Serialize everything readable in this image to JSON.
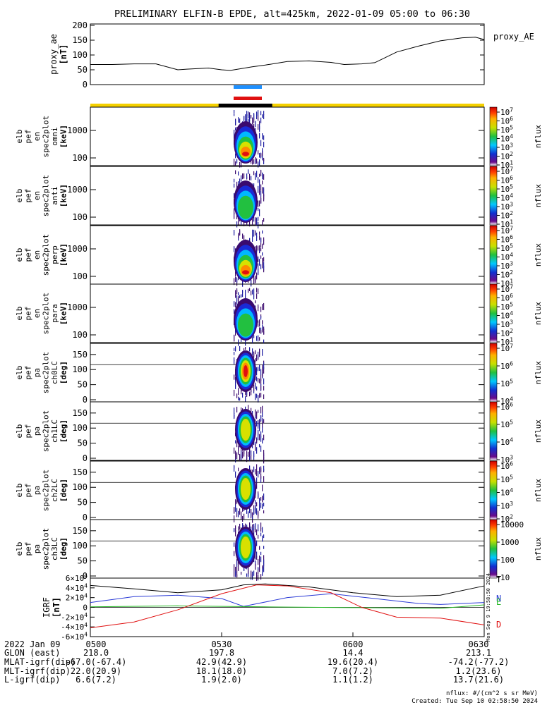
{
  "title": "PRELIMINARY ELFIN-B EPDE, alt=425km, 2022-01-09 05:00 to 06:30",
  "ae_panel": {
    "ylabel_1": "proxy_ae",
    "ylabel_2": "[nT]",
    "legend": "proxy_AE",
    "yticks": [
      "200",
      "150",
      "100",
      "50",
      "0"
    ]
  },
  "spec_panels": [
    {
      "label": [
        "elb",
        "pef",
        "en",
        "spec2plot",
        "omni",
        "[keV]"
      ],
      "yticks": [
        "1000",
        "100"
      ],
      "cbar_ticks": [
        "10^7",
        "10^6",
        "10^5",
        "10^4",
        "10^3",
        "10^2",
        "10^1"
      ],
      "cbar_label": "nflux"
    },
    {
      "label": [
        "elb",
        "pef",
        "en",
        "spec2plot",
        "anti",
        "[keV]"
      ],
      "yticks": [
        "1000",
        "100"
      ],
      "cbar_ticks": [
        "10^7",
        "10^6",
        "10^5",
        "10^4",
        "10^3",
        "10^2",
        "10^1"
      ],
      "cbar_label": "nflux"
    },
    {
      "label": [
        "elb",
        "pef",
        "en",
        "spec2plot",
        "perp",
        "[keV]"
      ],
      "yticks": [
        "1000",
        "100"
      ],
      "cbar_ticks": [
        "10^7",
        "10^6",
        "10^5",
        "10^4",
        "10^3",
        "10^2",
        "10^1"
      ],
      "cbar_label": "nflux"
    },
    {
      "label": [
        "elb",
        "pef",
        "en",
        "spec2plot",
        "para",
        "[keV]"
      ],
      "yticks": [
        "1000",
        "100"
      ],
      "cbar_ticks": [
        "10^7",
        "10^6",
        "10^5",
        "10^4",
        "10^3",
        "10^2",
        "10^1"
      ],
      "cbar_label": "nflux"
    },
    {
      "label": [
        "elb",
        "pef",
        "pa",
        "spec2plot",
        "ch0LC",
        "[deg]"
      ],
      "yticks": [
        "150",
        "100",
        "50",
        "0"
      ],
      "cbar_ticks": [
        "10^7",
        "10^6",
        "10^5",
        "10^4"
      ],
      "cbar_label": "nflux"
    },
    {
      "label": [
        "elb",
        "pef",
        "pa",
        "spec2plot",
        "ch1LC",
        "[deg]"
      ],
      "yticks": [
        "150",
        "100",
        "50",
        "0"
      ],
      "cbar_ticks": [
        "10^6",
        "10^5",
        "10^4",
        "10^3"
      ],
      "cbar_label": "nflux"
    },
    {
      "label": [
        "elb",
        "pef",
        "pa",
        "spec2plot",
        "ch2LC",
        "[deg]"
      ],
      "yticks": [
        "150",
        "100",
        "50",
        "0"
      ],
      "cbar_ticks": [
        "10^6",
        "10^5",
        "10^4",
        "10^3",
        "10^2"
      ],
      "cbar_label": "nflux"
    },
    {
      "label": [
        "elb",
        "pef",
        "pa",
        "spec2plot",
        "ch3LC",
        "[deg]"
      ],
      "yticks": [
        "150",
        "100",
        "50",
        "0"
      ],
      "cbar_ticks": [
        "10000",
        "1000",
        "100",
        "10"
      ],
      "cbar_label": "nflux"
    }
  ],
  "igrf_panel": {
    "ylabel_1": "IGRF",
    "ylabel_2": "[nT]",
    "yticks": [
      "6×10^4",
      "4×10^4",
      "2×10^4",
      "0",
      "-2×10^4",
      "-4×10^4",
      "-6×10^4"
    ],
    "legend": [
      {
        "label": "T",
        "color": "#000000"
      },
      {
        "label": "N",
        "color": "#2a3ad6"
      },
      {
        "label": "E",
        "color": "#22b822"
      },
      {
        "label": "D",
        "color": "#e01010"
      }
    ],
    "side_text": "Mon Sep 9 19:58:50 2024"
  },
  "xaxis": {
    "rows": [
      {
        "label": "2022 Jan 09",
        "values": [
          "0500",
          "0530",
          "0600",
          "0630"
        ]
      },
      {
        "label": "GLON (east)",
        "values": [
          "218.0",
          "197.8",
          "14.4",
          "213.1"
        ]
      },
      {
        "label": "MLAT-igrf(dip)",
        "values": [
          "-67.0(-67.4)",
          "42.9(42.9)",
          "19.6(20.4)",
          "-74.2(-77.2)"
        ]
      },
      {
        "label": "MLT-igrf(dip)",
        "values": [
          "22.0(20.9)",
          "18.1(18.0)",
          "7.0(7.2)",
          "1.2(23.6)"
        ]
      },
      {
        "label": "L-igrf(dip)",
        "values": [
          "6.6(7.2)",
          "1.9(2.0)",
          "1.1(1.2)",
          "13.7(21.6)"
        ]
      }
    ]
  },
  "footer": {
    "units": "nflux: #/(cm^2 s sr MeV)",
    "created": "Created: Tue Sep 10 02:58:50 2024"
  },
  "colors": {
    "fgm_bar_blue": "#1e90ff",
    "epd_bar_red": "#e01010",
    "sci_zone_yellow": "#f4d000",
    "science_black": "#000000"
  },
  "chart_data": {
    "type": "line",
    "time_range": [
      "2022-01-09 05:00",
      "2022-01-09 06:30"
    ],
    "ae_series": {
      "name": "proxy_AE",
      "x_minutes": [
        0,
        5,
        10,
        15,
        20,
        22,
        27,
        30,
        32,
        37,
        40,
        45,
        50,
        55,
        58,
        62,
        65,
        70,
        75,
        80,
        85,
        88,
        90
      ],
      "values": [
        68,
        68,
        70,
        70,
        50,
        52,
        56,
        50,
        48,
        60,
        66,
        78,
        80,
        75,
        68,
        70,
        74,
        110,
        130,
        148,
        158,
        160,
        152
      ],
      "ylim": [
        0,
        200
      ]
    },
    "igrf_series": [
      {
        "name": "T",
        "x_minutes": [
          0,
          10,
          20,
          30,
          35,
          40,
          50,
          60,
          70,
          80,
          90
        ],
        "values": [
          45000,
          38000,
          30000,
          36000,
          46000,
          48000,
          42000,
          30000,
          22000,
          25000,
          44000
        ]
      },
      {
        "name": "N",
        "x_minutes": [
          0,
          10,
          20,
          30,
          35,
          45,
          55,
          65,
          75,
          80,
          90
        ],
        "values": [
          10000,
          22000,
          25000,
          18000,
          2000,
          20000,
          28000,
          18000,
          8000,
          6000,
          10000
        ]
      },
      {
        "name": "E",
        "x_minutes": [
          0,
          20,
          40,
          60,
          80,
          90
        ],
        "values": [
          1000,
          3000,
          1000,
          -500,
          -2000,
          5000
        ]
      },
      {
        "name": "D",
        "x_minutes": [
          0,
          10,
          20,
          30,
          38,
          45,
          55,
          62,
          70,
          80,
          90
        ],
        "values": [
          -42000,
          -30000,
          -5000,
          28000,
          46000,
          44000,
          30000,
          0,
          -20000,
          -22000,
          -36000
        ]
      }
    ],
    "igrf_ylim": [
      -60000,
      60000
    ],
    "science_zone_minutes": [
      33.5,
      38.5
    ]
  }
}
